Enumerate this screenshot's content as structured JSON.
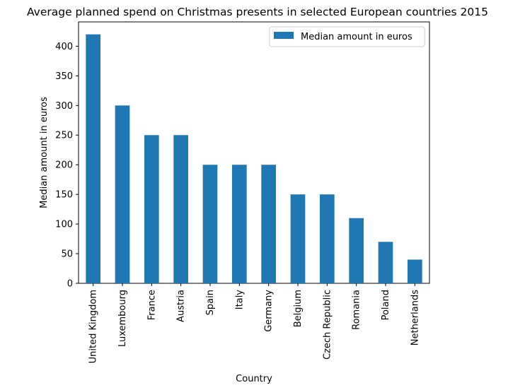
{
  "chart_data": {
    "type": "bar",
    "title": "Average planned spend on Christmas presents in selected European countries 2015",
    "xlabel": "Country",
    "ylabel": "Median amount in euros",
    "categories": [
      "United Kingdom",
      "Luxembourg",
      "France",
      "Austria",
      "Spain",
      "Italy",
      "Germany",
      "Belgium",
      "Czech Republic",
      "Romania",
      "Poland",
      "Netherlands"
    ],
    "series": [
      {
        "name": "Median amount in euros",
        "values": [
          420,
          300,
          250,
          250,
          200,
          200,
          200,
          150,
          150,
          110,
          70,
          40
        ],
        "color": "#1f77b4"
      }
    ],
    "ylim": [
      0,
      441
    ],
    "yticks": [
      "0",
      "50",
      "100",
      "150",
      "200",
      "250",
      "300",
      "350",
      "400"
    ],
    "grid": false,
    "legend_position": "top-right"
  }
}
